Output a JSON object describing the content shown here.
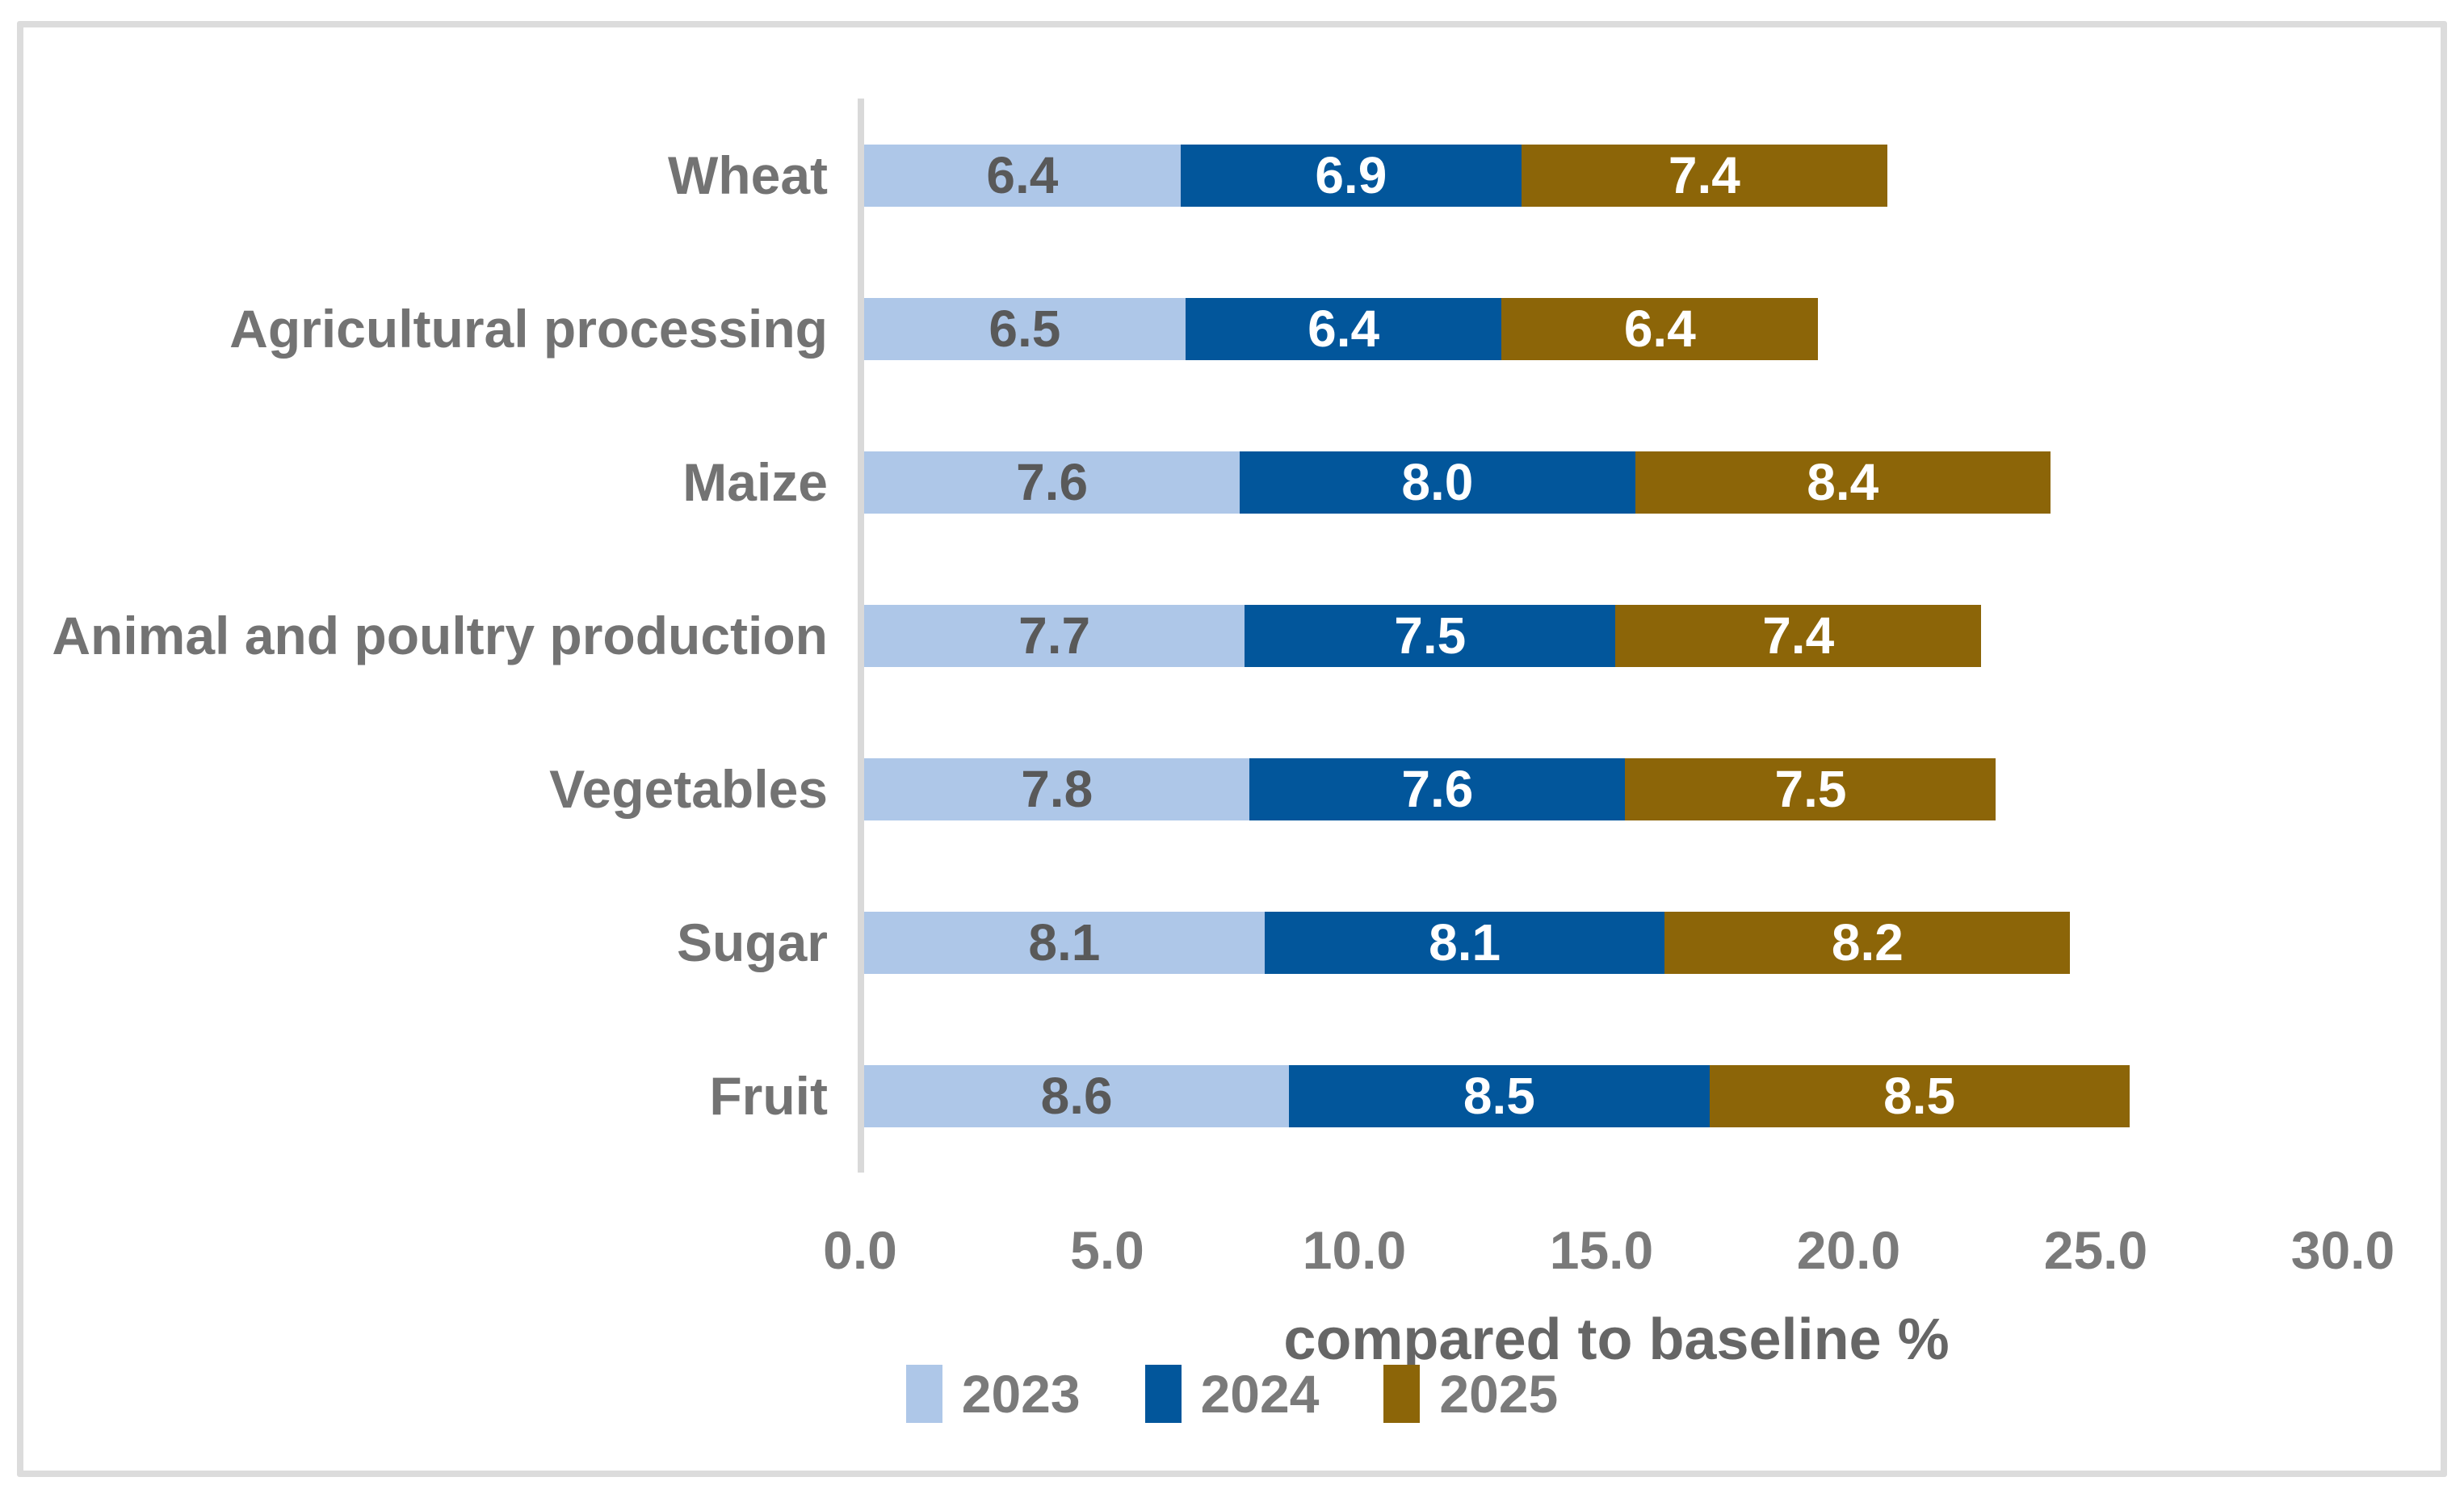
{
  "chart_data": {
    "type": "bar",
    "orientation": "horizontal",
    "stacked": true,
    "title": "",
    "xlabel": "compared to baseline %",
    "ylabel": "",
    "categories": [
      "Wheat",
      "Agricultural processing",
      "Maize",
      "Animal and poultry production",
      "Vegetables",
      "Sugar",
      "Fruit"
    ],
    "series": [
      {
        "name": "2023",
        "color": "#AEC7E8",
        "label_color": "#595959",
        "values": [
          6.4,
          6.5,
          7.6,
          7.7,
          7.8,
          8.1,
          8.6
        ]
      },
      {
        "name": "2024",
        "color": "#02569B",
        "label_color": "#FFFFFF",
        "values": [
          6.9,
          6.4,
          8.0,
          7.5,
          7.6,
          8.1,
          8.5
        ]
      },
      {
        "name": "2025",
        "color": "#8C6508",
        "label_color": "#FFFFFF",
        "values": [
          7.4,
          6.4,
          8.4,
          7.4,
          7.5,
          8.2,
          8.5
        ]
      }
    ],
    "x_ticks": [
      "0.0",
      "5.0",
      "10.0",
      "15.0",
      "20.0",
      "25.0",
      "30.0"
    ],
    "xlim": [
      0,
      30
    ],
    "grid": false,
    "legend_position": "bottom",
    "value_labels": "inside_center_one_decimal"
  },
  "style": {
    "frame_border_color": "#DCDCDC",
    "axis_line_color": "#D9D9D9",
    "category_label_color": "#737373",
    "tick_label_color": "#7A7A7A",
    "axis_title_color": "#666666",
    "legend_text_color": "#7A7A7A",
    "background_color": "#FFFFFF"
  }
}
